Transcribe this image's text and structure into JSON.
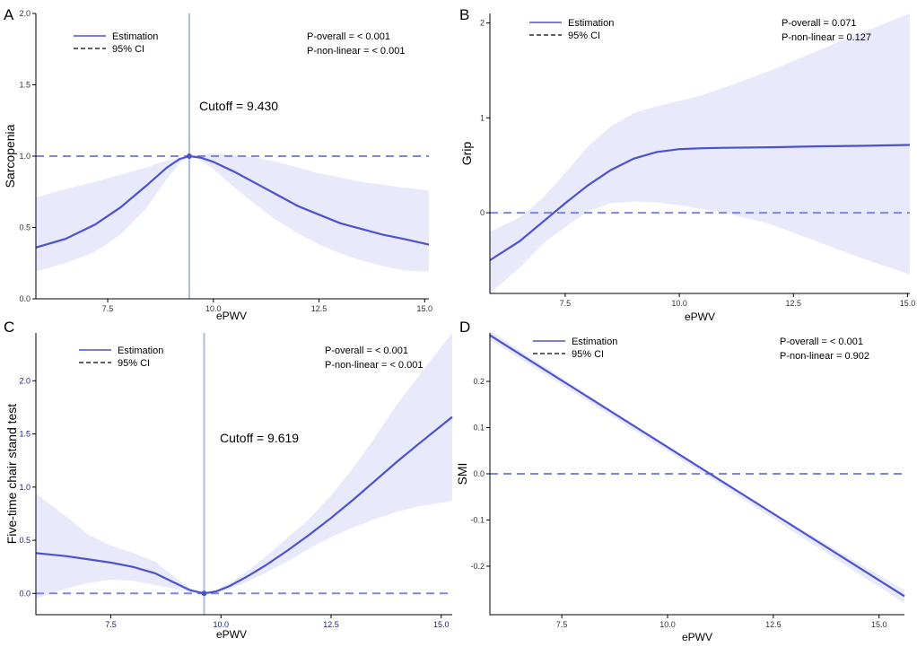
{
  "chart_data": [
    {
      "type": "line",
      "panel": "A",
      "xlabel": "ePWV",
      "ylabel": "Sarcopenia",
      "xlim": [
        5.8,
        15.1
      ],
      "ylim": [
        0,
        2.0
      ],
      "xticks": [
        7.5,
        10.0,
        12.5,
        15.0
      ],
      "xtick_labels": [
        "7.5",
        "10.0",
        "12.5",
        "15.0"
      ],
      "yticks": [
        0,
        0.5,
        1.0,
        1.5,
        2.0
      ],
      "ytick_labels": [
        "0.0",
        "0.5",
        "1.0",
        "1.5",
        "2.0"
      ],
      "reference_y": 1.0,
      "legend": {
        "estimation": "Estimation",
        "ci": "95% CI"
      },
      "p_overall": "P-overall = < 0.001",
      "p_nonlinear": "P-non-linear = < 0.001",
      "cutoff_label": "Cutoff = 9.430",
      "cutoff_x": 9.43,
      "cutoff_y": 1.0,
      "series": [
        {
          "name": "Estimation",
          "x": [
            5.8,
            6.5,
            7.2,
            7.8,
            8.4,
            8.9,
            9.2,
            9.43,
            9.7,
            10.0,
            10.5,
            11.0,
            11.5,
            12.0,
            12.5,
            13.0,
            13.5,
            14.0,
            14.5,
            15.1
          ],
          "y": [
            0.36,
            0.42,
            0.52,
            0.64,
            0.79,
            0.92,
            0.98,
            1.0,
            0.99,
            0.96,
            0.89,
            0.81,
            0.73,
            0.65,
            0.59,
            0.53,
            0.49,
            0.45,
            0.42,
            0.38
          ]
        },
        {
          "name": "CI upper",
          "x": [
            5.8,
            6.5,
            7.2,
            7.8,
            8.4,
            8.9,
            9.2,
            9.43,
            9.7,
            10.0,
            10.5,
            11.0,
            11.5,
            12.0,
            12.5,
            13.0,
            13.5,
            14.0,
            14.5,
            15.1
          ],
          "y": [
            0.71,
            0.77,
            0.82,
            0.87,
            0.92,
            0.97,
            0.99,
            1.0,
            1.01,
            1.02,
            1.01,
            0.99,
            0.96,
            0.92,
            0.88,
            0.85,
            0.82,
            0.8,
            0.78,
            0.76
          ]
        },
        {
          "name": "CI lower",
          "x": [
            5.8,
            6.5,
            7.2,
            7.8,
            8.4,
            8.9,
            9.2,
            9.43,
            9.7,
            10.0,
            10.5,
            11.0,
            11.5,
            12.0,
            12.5,
            13.0,
            13.5,
            14.0,
            14.5,
            15.1
          ],
          "y": [
            0.19,
            0.25,
            0.33,
            0.45,
            0.63,
            0.84,
            0.95,
            1.0,
            0.97,
            0.91,
            0.78,
            0.66,
            0.55,
            0.46,
            0.38,
            0.32,
            0.27,
            0.23,
            0.2,
            0.19
          ]
        }
      ]
    },
    {
      "type": "line",
      "panel": "B",
      "xlabel": "ePWV",
      "ylabel": "Grip",
      "xlim": [
        5.85,
        15.05
      ],
      "ylim": [
        -0.85,
        2.1
      ],
      "xticks": [
        7.5,
        10.0,
        12.5,
        15.0
      ],
      "xtick_labels": [
        "7.5",
        "10.0",
        "12.5",
        "15.0"
      ],
      "yticks": [
        0,
        1,
        2
      ],
      "ytick_labels": [
        "0",
        "1",
        "2"
      ],
      "reference_y": 0,
      "legend": {
        "estimation": "Estimation",
        "ci": "95% CI"
      },
      "p_overall": "P-overall = 0.071",
      "p_nonlinear": "P-non-linear = 0.127",
      "series": [
        {
          "name": "Estimation",
          "x": [
            5.85,
            6.5,
            7.0,
            7.5,
            8.0,
            8.5,
            9.0,
            9.5,
            10.0,
            10.5,
            11.0,
            12.0,
            13.0,
            14.0,
            15.05
          ],
          "y": [
            -0.5,
            -0.3,
            -0.1,
            0.1,
            0.29,
            0.45,
            0.57,
            0.64,
            0.67,
            0.68,
            0.685,
            0.69,
            0.7,
            0.705,
            0.715
          ]
        },
        {
          "name": "CI upper",
          "x": [
            5.85,
            6.5,
            7.0,
            7.5,
            8.0,
            8.5,
            9.0,
            9.5,
            10.0,
            10.5,
            11.0,
            12.0,
            13.0,
            14.0,
            15.05
          ],
          "y": [
            -0.2,
            -0.05,
            0.15,
            0.42,
            0.7,
            0.91,
            1.05,
            1.12,
            1.18,
            1.24,
            1.32,
            1.5,
            1.7,
            1.9,
            2.1
          ]
        },
        {
          "name": "CI lower",
          "x": [
            5.85,
            6.5,
            7.0,
            7.5,
            8.0,
            8.5,
            9.0,
            9.5,
            10.0,
            10.5,
            11.0,
            12.0,
            13.0,
            14.0,
            15.05
          ],
          "y": [
            -0.85,
            -0.58,
            -0.33,
            -0.15,
            0.02,
            0.1,
            0.12,
            0.11,
            0.08,
            0.04,
            0.0,
            -0.12,
            -0.3,
            -0.48,
            -0.65
          ]
        }
      ]
    },
    {
      "type": "line",
      "panel": "C",
      "xlabel": "ePWV",
      "ylabel": "Five-time chair stand test",
      "xlim": [
        5.8,
        15.25
      ],
      "ylim": [
        -0.2,
        2.45
      ],
      "xticks": [
        7.5,
        10.0,
        12.5,
        15.0
      ],
      "xtick_labels": [
        "7.5",
        "10.0",
        "12.5",
        "15.0"
      ],
      "yticks": [
        0,
        0.5,
        1.0,
        1.5,
        2.0
      ],
      "ytick_labels": [
        "0.0",
        "0.5",
        "1.0",
        "1.5",
        "2.0"
      ],
      "reference_y": 0,
      "legend": {
        "estimation": "Estimation",
        "ci": "95% CI"
      },
      "p_overall": "P-overall = < 0.001",
      "p_nonlinear": "P-non-linear = < 0.001",
      "cutoff_label": "Cutoff = 9.619",
      "cutoff_x": 9.619,
      "cutoff_y": 0,
      "series": [
        {
          "name": "Estimation",
          "x": [
            5.8,
            6.5,
            7.0,
            7.5,
            8.0,
            8.5,
            9.0,
            9.3,
            9.619,
            9.9,
            10.2,
            10.6,
            11.0,
            11.5,
            12.0,
            12.5,
            13.0,
            13.5,
            14.0,
            14.5,
            15.25
          ],
          "y": [
            0.38,
            0.35,
            0.32,
            0.29,
            0.25,
            0.19,
            0.09,
            0.03,
            0.0,
            0.02,
            0.07,
            0.16,
            0.26,
            0.4,
            0.55,
            0.71,
            0.88,
            1.06,
            1.24,
            1.41,
            1.66
          ]
        },
        {
          "name": "CI upper",
          "x": [
            5.8,
            6.5,
            7.0,
            7.5,
            8.0,
            8.5,
            9.0,
            9.3,
            9.619,
            9.9,
            10.2,
            10.6,
            11.0,
            11.5,
            12.0,
            12.5,
            13.0,
            13.5,
            14.0,
            14.5,
            15.25
          ],
          "y": [
            0.94,
            0.72,
            0.55,
            0.45,
            0.38,
            0.3,
            0.14,
            0.05,
            0.0,
            0.03,
            0.1,
            0.21,
            0.34,
            0.52,
            0.7,
            0.92,
            1.18,
            1.47,
            1.78,
            2.05,
            2.45
          ]
        },
        {
          "name": "CI lower",
          "x": [
            5.8,
            6.5,
            7.0,
            7.5,
            8.0,
            8.5,
            9.0,
            9.3,
            9.619,
            9.9,
            10.2,
            10.6,
            11.0,
            11.5,
            12.0,
            12.5,
            13.0,
            13.5,
            14.0,
            14.5,
            15.25
          ],
          "y": [
            -0.05,
            0.05,
            0.1,
            0.13,
            0.12,
            0.08,
            0.04,
            0.01,
            0.0,
            0.01,
            0.04,
            0.11,
            0.19,
            0.3,
            0.42,
            0.53,
            0.62,
            0.7,
            0.77,
            0.82,
            0.87
          ]
        }
      ]
    },
    {
      "type": "line",
      "panel": "D",
      "xlabel": "ePWV",
      "ylabel": "SMI",
      "xlim": [
        5.8,
        15.6
      ],
      "ylim": [
        -0.305,
        0.305
      ],
      "xticks": [
        7.5,
        10.0,
        12.5,
        15.0
      ],
      "xtick_labels": [
        "7.5",
        "10.0",
        "12.5",
        "15.0"
      ],
      "yticks": [
        -0.2,
        -0.1,
        0.0,
        0.1,
        0.2
      ],
      "ytick_labels": [
        "-0.2",
        "-0.1",
        "0.0",
        "0.1",
        "0.2"
      ],
      "reference_y": 0,
      "legend": {
        "estimation": "Estimation",
        "ci": "95% CI"
      },
      "p_overall": "P-overall = < 0.001",
      "p_nonlinear": "P-non-linear = 0.902",
      "series": [
        {
          "name": "Estimation",
          "x": [
            5.8,
            15.6
          ],
          "y": [
            0.3,
            -0.265
          ]
        },
        {
          "name": "CI upper",
          "x": [
            5.8,
            10.9,
            15.6
          ],
          "y": [
            0.31,
            0.003,
            -0.252
          ]
        },
        {
          "name": "CI lower",
          "x": [
            5.8,
            10.9,
            15.6
          ],
          "y": [
            0.29,
            -0.003,
            -0.28
          ]
        }
      ]
    }
  ]
}
